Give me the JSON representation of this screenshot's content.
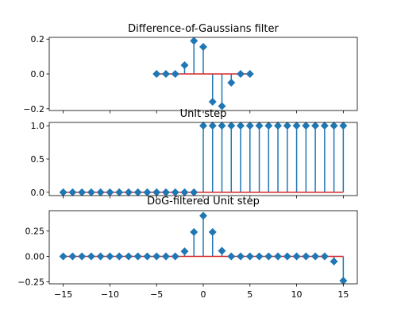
{
  "chart_data": [
    {
      "type": "stem",
      "title": "Difference-of-Gaussians filter",
      "x": [
        -5,
        -4,
        -3,
        -2,
        -1,
        0,
        1,
        2,
        3,
        4,
        5
      ],
      "y": [
        0.0,
        0.0,
        0.0,
        0.05,
        0.19,
        0.155,
        -0.16,
        -0.185,
        -0.05,
        0.0,
        0.0
      ],
      "xlim": [
        -16.5,
        16.5
      ],
      "ylim": [
        -0.21,
        0.21
      ],
      "yticks": [
        -0.2,
        0.0,
        0.2
      ],
      "ytick_labels": [
        "−0.2",
        "0.0",
        "0.2"
      ],
      "show_xtick_labels": false,
      "grid": false
    },
    {
      "type": "stem",
      "title": "Unit step",
      "x": [
        -15,
        -14,
        -13,
        -12,
        -11,
        -10,
        -9,
        -8,
        -7,
        -6,
        -5,
        -4,
        -3,
        -2,
        -1,
        0,
        1,
        2,
        3,
        4,
        5,
        6,
        7,
        8,
        9,
        10,
        11,
        12,
        13,
        14,
        15
      ],
      "y": [
        0,
        0,
        0,
        0,
        0,
        0,
        0,
        0,
        0,
        0,
        0,
        0,
        0,
        0,
        0,
        1,
        1,
        1,
        1,
        1,
        1,
        1,
        1,
        1,
        1,
        1,
        1,
        1,
        1,
        1,
        1
      ],
      "xlim": [
        -16.5,
        16.5
      ],
      "ylim": [
        -0.05,
        1.05
      ],
      "yticks": [
        0.0,
        0.5,
        1.0
      ],
      "ytick_labels": [
        "0.0",
        "0.5",
        "1.0"
      ],
      "show_xtick_labels": false,
      "grid": false
    },
    {
      "type": "stem",
      "title": "DoG-filtered Unit step",
      "x": [
        -15,
        -14,
        -13,
        -12,
        -11,
        -10,
        -9,
        -8,
        -7,
        -6,
        -5,
        -4,
        -3,
        -2,
        -1,
        0,
        1,
        2,
        3,
        4,
        5,
        6,
        7,
        8,
        9,
        10,
        11,
        12,
        13,
        14,
        15
      ],
      "y": [
        0,
        0,
        0,
        0,
        0,
        0,
        0,
        0,
        0,
        0,
        0,
        0,
        0,
        0.05,
        0.24,
        0.4,
        0.24,
        0.055,
        0,
        0,
        0,
        0,
        0,
        0,
        0,
        0,
        0,
        0,
        0,
        -0.05,
        -0.24
      ],
      "xlim": [
        -16.5,
        16.5
      ],
      "ylim": [
        -0.27,
        0.45
      ],
      "yticks": [
        -0.25,
        0.0,
        0.25
      ],
      "ytick_labels": [
        "−0.25",
        "0.00",
        "0.25"
      ],
      "xticks": [
        -15,
        -10,
        -5,
        0,
        5,
        10,
        15
      ],
      "xtick_labels": [
        "−15",
        "−10",
        "−5",
        "0",
        "5",
        "10",
        "15"
      ],
      "show_xtick_labels": true,
      "grid": false
    }
  ],
  "colors": {
    "stem": "#1f77b4",
    "baseline": "#d62728"
  }
}
